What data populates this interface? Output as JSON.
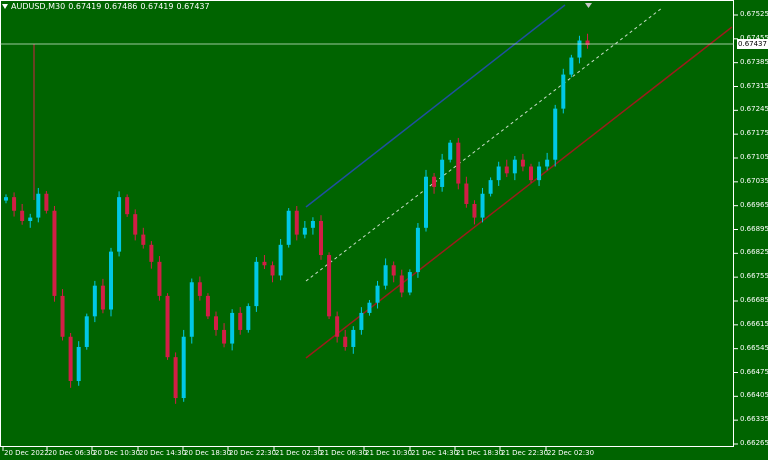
{
  "header": {
    "symbol_tf": "AUDUSD,M30",
    "ohlc": [
      "0.67419",
      "0.67486",
      "0.67419",
      "0.67437"
    ]
  },
  "current_price": "0.67437",
  "colors": {
    "background": "#006400",
    "bull": "#00c8e6",
    "bear": "#d21e46",
    "upper_line": "#1f4fa0",
    "lower_line": "#9b1b1b",
    "mid_line": "#c8dcc8",
    "grid_text": "#ffffff"
  },
  "chart_data": {
    "type": "candlestick",
    "symbol": "AUDUSD",
    "timeframe": "M30",
    "y_ticks": [
      "0.67525",
      "0.67455",
      "0.67385",
      "0.67315",
      "0.67245",
      "0.67175",
      "0.67105",
      "0.67035",
      "0.66965",
      "0.66895",
      "0.66825",
      "0.66755",
      "0.66685",
      "0.66615",
      "0.66545",
      "0.66475",
      "0.66405",
      "0.66335",
      "0.66265"
    ],
    "x_ticks": [
      "20 Dec 2022",
      "20 Dec 06:30",
      "20 Dec 10:30",
      "20 Dec 14:30",
      "20 Dec 18:30",
      "20 Dec 22:30",
      "21 Dec 02:30",
      "21 Dec 06:30",
      "21 Dec 10:30",
      "21 Dec 14:30",
      "21 Dec 18:30",
      "21 Dec 22:30",
      "22 Dec 02:30"
    ],
    "ylim": [
      0.66265,
      0.67555
    ],
    "closes": [
      0.6699,
      0.6695,
      0.6692,
      0.6693,
      0.67,
      0.6695,
      0.667,
      0.6658,
      0.6645,
      0.6655,
      0.6664,
      0.6673,
      0.6666,
      0.6683,
      0.6699,
      0.6694,
      0.6688,
      0.6685,
      0.668,
      0.667,
      0.6652,
      0.664,
      0.6658,
      0.6674,
      0.667,
      0.6664,
      0.666,
      0.6656,
      0.6665,
      0.666,
      0.6667,
      0.668,
      0.6679,
      0.6676,
      0.6685,
      0.6695,
      0.6688,
      0.669,
      0.6692,
      0.6682,
      0.6664,
      0.6658,
      0.6655,
      0.666,
      0.6665,
      0.6668,
      0.6673,
      0.6679,
      0.6676,
      0.6671,
      0.6677,
      0.669,
      0.6705,
      0.6702,
      0.671,
      0.6715,
      0.6703,
      0.6697,
      0.6693,
      0.67,
      0.6704,
      0.6708,
      0.6706,
      0.671,
      0.6708,
      0.6704,
      0.6708,
      0.671,
      0.6725,
      0.6735,
      0.674,
      0.6745,
      0.67437
    ]
  }
}
